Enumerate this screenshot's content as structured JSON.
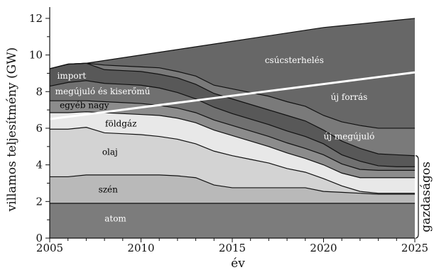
{
  "chart_data": {
    "type": "area",
    "title": "",
    "xlabel": "év",
    "ylabel": "villamos teljesítmény (GW)",
    "xlim": [
      2005,
      2025
    ],
    "ylim": [
      0,
      12.5
    ],
    "x_ticks": [
      2005,
      2010,
      2015,
      2020,
      2025
    ],
    "y_ticks": [
      0,
      2,
      4,
      6,
      8,
      10,
      12
    ],
    "grid": false,
    "x": [
      2005,
      2006,
      2007,
      2008,
      2009,
      2010,
      2011,
      2012,
      2013,
      2014,
      2015,
      2016,
      2017,
      2018,
      2019,
      2020,
      2021,
      2022,
      2023,
      2024,
      2025
    ],
    "series": [
      {
        "name": "atom",
        "cumulative": [
          1.9,
          1.9,
          1.9,
          1.9,
          1.9,
          1.9,
          1.9,
          1.9,
          1.9,
          1.9,
          1.9,
          1.9,
          1.9,
          1.9,
          1.9,
          1.9,
          1.9,
          1.9,
          1.9,
          1.9,
          1.9
        ],
        "color": "#7c7c7c"
      },
      {
        "name": "szén",
        "cumulative": [
          3.35,
          3.35,
          3.45,
          3.45,
          3.45,
          3.45,
          3.45,
          3.4,
          3.3,
          2.9,
          2.75,
          2.75,
          2.75,
          2.75,
          2.75,
          2.55,
          2.5,
          2.45,
          2.4,
          2.4,
          2.4
        ],
        "color": "#b9b9b9"
      },
      {
        "name": "olaj",
        "cumulative": [
          5.95,
          5.95,
          6.05,
          5.75,
          5.7,
          5.65,
          5.55,
          5.4,
          5.15,
          4.75,
          4.5,
          4.3,
          4.1,
          3.8,
          3.6,
          3.25,
          2.85,
          2.55,
          2.45,
          2.45,
          2.45
        ],
        "color": "#d3d3d3"
      },
      {
        "name": "földgáz",
        "cumulative": [
          6.85,
          6.85,
          6.9,
          6.85,
          6.8,
          6.75,
          6.7,
          6.55,
          6.3,
          5.9,
          5.6,
          5.3,
          5.0,
          4.65,
          4.35,
          4.0,
          3.55,
          3.3,
          3.3,
          3.3,
          3.3
        ],
        "color": "#e8e8e8"
      },
      {
        "name": "egyéb nagy",
        "cumulative": [
          7.5,
          7.5,
          7.5,
          7.45,
          7.4,
          7.35,
          7.25,
          7.1,
          6.85,
          6.45,
          6.15,
          5.85,
          5.55,
          5.2,
          4.9,
          4.55,
          4.05,
          3.75,
          3.7,
          3.7,
          3.7
        ],
        "color": "#8c8c8c"
      },
      {
        "name": "megújuló és kiserőmű",
        "cumulative": [
          8.3,
          8.5,
          8.6,
          8.45,
          8.4,
          8.35,
          8.2,
          7.95,
          7.6,
          7.15,
          6.8,
          6.5,
          6.2,
          5.85,
          5.55,
          5.15,
          4.55,
          4.2,
          3.95,
          3.9,
          3.9
        ],
        "color": "#707070"
      },
      {
        "name": "import",
        "cumulative": [
          9.25,
          9.5,
          9.55,
          9.2,
          9.15,
          9.1,
          8.95,
          8.75,
          8.4,
          7.9,
          7.6,
          7.3,
          7.0,
          6.7,
          6.4,
          5.9,
          5.3,
          4.9,
          4.6,
          4.55,
          4.5
        ],
        "color": "#585858"
      },
      {
        "name": "új megújuló",
        "cumulative": [
          9.25,
          9.5,
          9.55,
          9.45,
          9.4,
          9.35,
          9.3,
          9.1,
          8.85,
          8.35,
          8.15,
          7.95,
          7.75,
          7.45,
          7.2,
          6.7,
          6.35,
          6.15,
          6.0,
          6.0,
          6.0
        ],
        "color": "#7a7a7a"
      },
      {
        "name": "új forrás",
        "cumulative": [
          9.25,
          9.5,
          9.55,
          9.7,
          9.85,
          10.0,
          10.15,
          10.3,
          10.45,
          10.6,
          10.75,
          10.9,
          11.05,
          11.2,
          11.35,
          11.5,
          11.6,
          11.7,
          11.8,
          11.9,
          12.0
        ],
        "color": "#676767"
      }
    ],
    "line": {
      "name": "csúcsterhelés",
      "x": [
        2005,
        2025
      ],
      "y": [
        6.5,
        9.05
      ],
      "color": "#ffffff"
    },
    "bracket": {
      "label": "gazdaságos",
      "y_from": 0,
      "y_to": 4.5
    },
    "stroke_color": "#111111"
  }
}
